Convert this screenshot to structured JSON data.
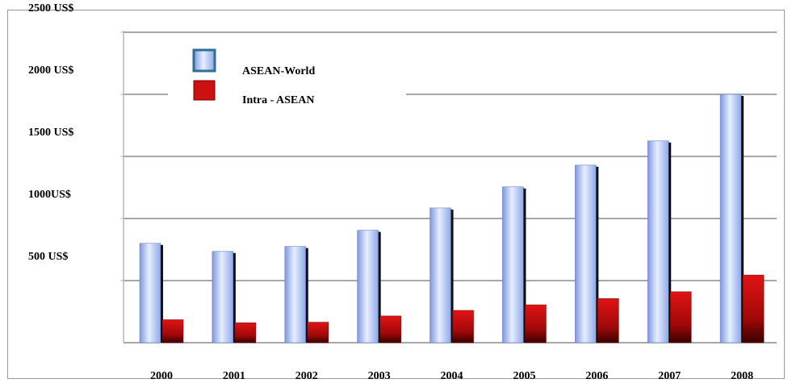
{
  "chart_data": {
    "type": "bar",
    "categories": [
      "2000",
      "2001",
      "2002",
      "2003",
      "2004",
      "2005",
      "2006",
      "2007",
      "2008"
    ],
    "series": [
      {
        "name": "ASEAN-World",
        "values": [
          800,
          735,
          775,
          905,
          1085,
          1255,
          1430,
          1625,
          2000
        ]
      },
      {
        "name": "Intra - ASEAN",
        "values": [
          185,
          160,
          165,
          215,
          260,
          305,
          355,
          410,
          545
        ]
      }
    ],
    "y_tick_labels": [
      "500 US$",
      "1000US$",
      "1500 US$",
      "2000 US$",
      "2500 US$"
    ],
    "y_tick_values": [
      500,
      1000,
      1500,
      2000,
      2500
    ],
    "ylim": [
      0,
      2500
    ],
    "grid": true,
    "legend_position": "top-left",
    "colors": {
      "world": "#a9c0f0",
      "intra": "#cc1111"
    }
  }
}
